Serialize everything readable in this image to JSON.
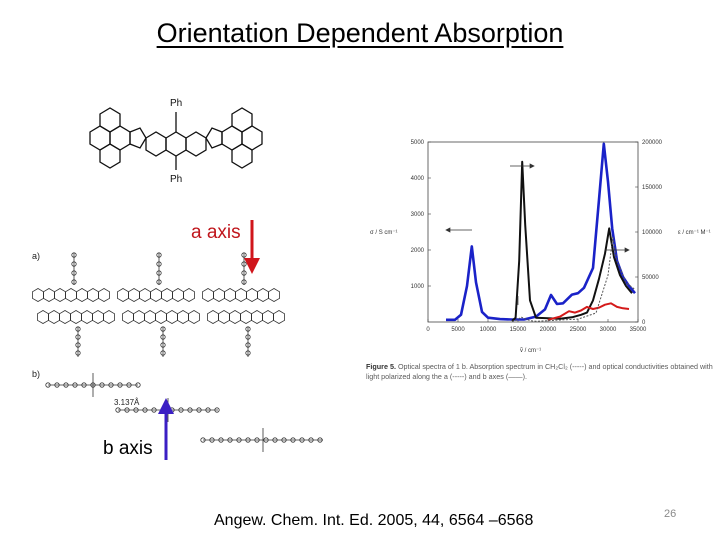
{
  "slide": {
    "title": "Orientation Dependent Absorption",
    "citation": "Angew. Chem. Int. Ed. 2005, 44, 6564 –6568",
    "page_number": "26"
  },
  "molecule": {
    "substituent_top": "Ph",
    "substituent_bottom": "Ph"
  },
  "crystal": {
    "panel_a_label": "a)",
    "panel_b_label": "b)",
    "distance_label": "3.137Å"
  },
  "annotations": {
    "a_axis": "a axis",
    "b_axis": "b axis",
    "a_axis_color": "#d0151b",
    "b_axis_color": "#3b1fc4"
  },
  "figure_caption": {
    "figure_number": "Figure 5.",
    "text": " Optical spectra of 1 b. Absorption spectrum in CH₂Cl₂ (-----) and optical conductivities obtained with light polarized along the a (-----) and b axes (——)."
  },
  "chart_data": {
    "type": "line",
    "xlabel": "ṽ / cm⁻¹",
    "ylabel_left": "σ / S cm⁻¹",
    "ylabel_right": "ε / cm⁻¹ M⁻¹",
    "xlim": [
      0,
      35000
    ],
    "ylim_left": [
      0,
      5000
    ],
    "ylim_right": [
      0,
      200000
    ],
    "x_ticks": [
      "0",
      "5000",
      "10000",
      "15000",
      "20000",
      "25000",
      "30000",
      "35000"
    ],
    "y_left_ticks": [
      "1000",
      "2000",
      "3000",
      "4000",
      "5000"
    ],
    "y_right_ticks": [
      "0",
      "50000",
      "100000",
      "150000",
      "200000"
    ],
    "series": [
      {
        "color": "#1a22c8",
        "x": [
          3000,
          4500,
          5500,
          6500,
          7300,
          8000,
          9000,
          10000,
          12000,
          14000,
          16000,
          18000,
          19500,
          20500,
          21500,
          22500,
          24000,
          25000,
          26000,
          27500,
          28500,
          29300,
          30000,
          30700,
          31500,
          32500,
          33500,
          34500
        ],
        "y": [
          60,
          60,
          200,
          1000,
          2100,
          1100,
          280,
          120,
          80,
          70,
          70,
          150,
          350,
          750,
          500,
          520,
          760,
          800,
          950,
          1500,
          3400,
          4950,
          3900,
          2600,
          1700,
          1250,
          1000,
          800
        ]
      },
      {
        "color": "#111111",
        "x": [
          14000,
          14600,
          15200,
          15700,
          16200,
          17000,
          18000,
          22000,
          24000,
          25500,
          26500,
          27500,
          28500,
          29500,
          30200,
          31000,
          32000,
          33000,
          34000
        ],
        "y": [
          30,
          120,
          1700,
          4450,
          2700,
          600,
          120,
          90,
          130,
          200,
          260,
          600,
          1200,
          1900,
          2600,
          1800,
          1300,
          1000,
          800
        ]
      },
      {
        "color": "#d41a1a",
        "x": [
          20000,
          22000,
          23500,
          24500,
          25500,
          26500,
          27500,
          28500,
          29500,
          30500,
          31500,
          32500,
          33500
        ],
        "y": [
          60,
          150,
          300,
          260,
          320,
          420,
          360,
          400,
          480,
          520,
          420,
          380,
          360
        ]
      },
      {
        "color": "#555555",
        "x": [
          14000,
          15000,
          15500,
          16000,
          17000,
          18000,
          25000,
          28000,
          30000,
          30800,
          31500,
          33000,
          34500
        ],
        "y": [
          20,
          60,
          140,
          100,
          40,
          20,
          80,
          250,
          1300,
          2350,
          1700,
          1100,
          900
        ]
      }
    ]
  }
}
